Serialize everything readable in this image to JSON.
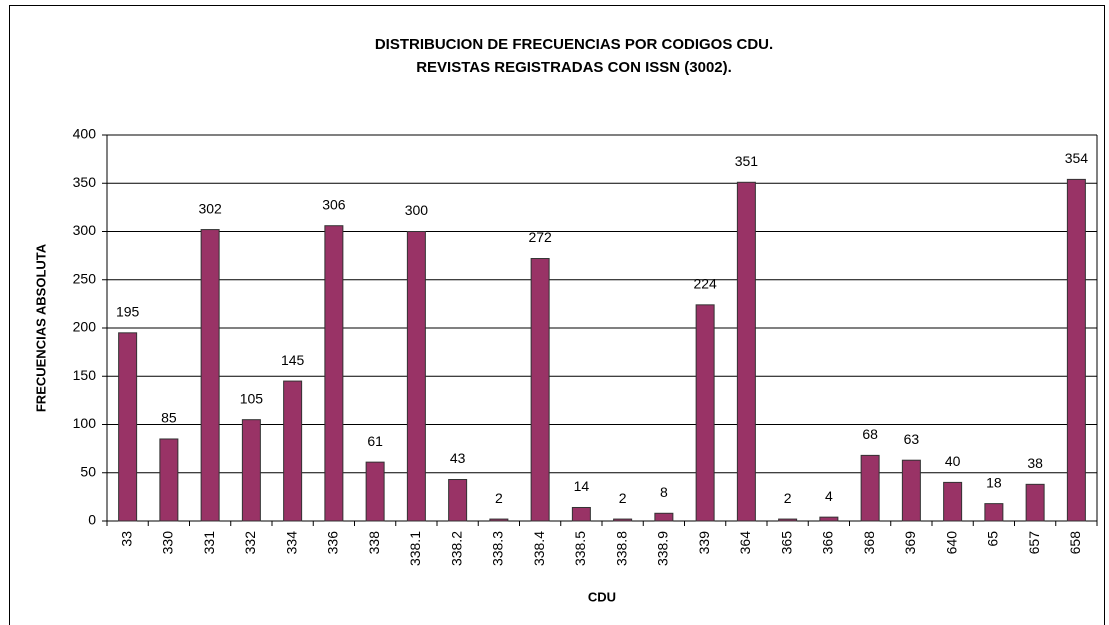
{
  "chart_data": {
    "type": "bar",
    "title": "DISTRIBUCION DE FRECUENCIAS POR CODIGOS CDU.",
    "subtitle": "REVISTAS REGISTRADAS CON ISSN (3002).",
    "x_label": "CDU",
    "y_label": "FRECUENCIAS ABSOLUTA",
    "categories": [
      "33",
      "330",
      "331",
      "332",
      "334",
      "336",
      "338",
      "338.1",
      "338.2",
      "338.3",
      "338.4",
      "338.5",
      "338.8",
      "338.9",
      "339",
      "364",
      "365",
      "366",
      "368",
      "369",
      "640",
      "65",
      "657",
      "658"
    ],
    "values": [
      195,
      85,
      302,
      105,
      145,
      306,
      61,
      300,
      43,
      2,
      272,
      14,
      2,
      8,
      224,
      351,
      2,
      4,
      68,
      63,
      40,
      18,
      38,
      354
    ],
    "color": "#993366",
    "ylim": [
      0,
      400
    ],
    "yticks": [
      0,
      50,
      100,
      150,
      200,
      250,
      300,
      350,
      400
    ],
    "grid": true
  }
}
